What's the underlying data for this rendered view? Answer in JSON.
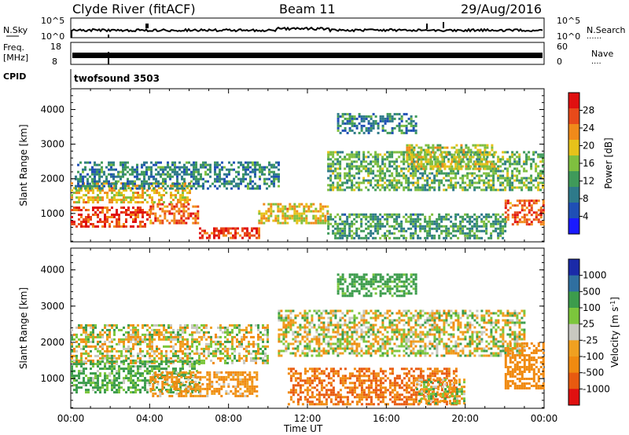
{
  "header": {
    "station": "Clyde River (fitACF)",
    "beam": "Beam 11",
    "date": "29/Aug/2016"
  },
  "noise_panel": {
    "left_label": "N.Sky",
    "right_label": "N.Search",
    "tick_top": "10^5",
    "tick_bottom": "10^0"
  },
  "freq_panel": {
    "left_label_1": "Freq.",
    "left_label_2": "[MHz]",
    "right_label": "Nave",
    "left_tick_top": "18",
    "left_tick_bottom": "8",
    "right_tick_top": "60",
    "right_tick_bottom": "0"
  },
  "cpid_panel": {
    "label": "CPID",
    "value": "twofsound 3503"
  },
  "x_axis": {
    "label": "Time UT",
    "ticks": [
      "00:00",
      "04:00",
      "08:00",
      "12:00",
      "16:00",
      "20:00",
      "00:00"
    ]
  },
  "colors": {
    "power": [
      "#1a1aff",
      "#1f4fb5",
      "#2e7a8a",
      "#3f9a5a",
      "#7fbf3f",
      "#e6c21a",
      "#f08a1a",
      "#e84a1a",
      "#e01010"
    ],
    "velocity": [
      "#1a2aa8",
      "#2f6fa0",
      "#3c9c4c",
      "#7cc63c",
      "#c8c8c0",
      "#f0a020",
      "#f08a10",
      "#e85a10",
      "#e01010"
    ]
  },
  "chart_data": [
    {
      "type": "heatmap",
      "name": "power",
      "xlabel": "",
      "ylabel": "Slant Range [km]",
      "xlim": [
        0,
        24
      ],
      "ylim": [
        180,
        4600
      ],
      "y_ticks": [
        1000,
        2000,
        3000,
        4000
      ],
      "colorbar": {
        "label": "Power [dB]",
        "ticks": [
          4,
          8,
          12,
          16,
          20,
          24,
          28
        ],
        "range": [
          0,
          32
        ]
      },
      "regions": [
        {
          "t0": 0.0,
          "t1": 4.0,
          "r0": 600,
          "r1": 1200,
          "value": 28
        },
        {
          "t0": 4.0,
          "t1": 6.5,
          "r0": 700,
          "r1": 1300,
          "value": 26
        },
        {
          "t0": 0.0,
          "t1": 6.0,
          "r0": 1300,
          "r1": 1900,
          "value": 20
        },
        {
          "t0": 0.2,
          "t1": 10.5,
          "r0": 1700,
          "r1": 2500,
          "value": 10
        },
        {
          "t0": 6.5,
          "t1": 9.5,
          "r0": 300,
          "r1": 600,
          "value": 28
        },
        {
          "t0": 9.5,
          "t1": 13.0,
          "r0": 700,
          "r1": 1300,
          "value": 20
        },
        {
          "t0": 13.0,
          "t1": 24.0,
          "r0": 1700,
          "r1": 2800,
          "value": 14
        },
        {
          "t0": 13.5,
          "t1": 17.5,
          "r0": 3300,
          "r1": 3900,
          "value": 10
        },
        {
          "t0": 17.0,
          "t1": 21.5,
          "r0": 2300,
          "r1": 3000,
          "value": 18
        },
        {
          "t0": 22.0,
          "t1": 24.0,
          "r0": 700,
          "r1": 1400,
          "value": 26
        },
        {
          "t0": 13.0,
          "t1": 22.0,
          "r0": 300,
          "r1": 1000,
          "value": 12
        }
      ]
    },
    {
      "type": "heatmap",
      "name": "velocity",
      "xlabel": "Time UT",
      "ylabel": "Slant Range [km]",
      "xlim": [
        0,
        24
      ],
      "ylim": [
        180,
        4600
      ],
      "y_ticks": [
        1000,
        2000,
        3000,
        4000
      ],
      "colorbar": {
        "label": "Velocity [m s^-1]",
        "ticks": [
          1000,
          500,
          100,
          25,
          -25,
          -100,
          -500,
          -1000
        ]
      },
      "regions": [
        {
          "t0": 0.0,
          "t1": 10.0,
          "r0": 1400,
          "r1": 2500,
          "value": 0
        },
        {
          "t0": 0.0,
          "t1": 6.5,
          "r0": 600,
          "r1": 1500,
          "value": 150
        },
        {
          "t0": 4.0,
          "t1": 9.5,
          "r0": 500,
          "r1": 1200,
          "value": -150
        },
        {
          "t0": 10.5,
          "t1": 23.0,
          "r0": 1600,
          "r1": 2900,
          "value": 0
        },
        {
          "t0": 11.0,
          "t1": 19.5,
          "r0": 300,
          "r1": 1300,
          "value": -500
        },
        {
          "t0": 22.0,
          "t1": 24.0,
          "r0": 700,
          "r1": 2000,
          "value": -300
        },
        {
          "t0": 13.5,
          "t1": 17.5,
          "r0": 3300,
          "r1": 3900,
          "value": 200
        },
        {
          "t0": 17.5,
          "t1": 20.0,
          "r0": 300,
          "r1": 1000,
          "value": 0
        }
      ]
    }
  ]
}
